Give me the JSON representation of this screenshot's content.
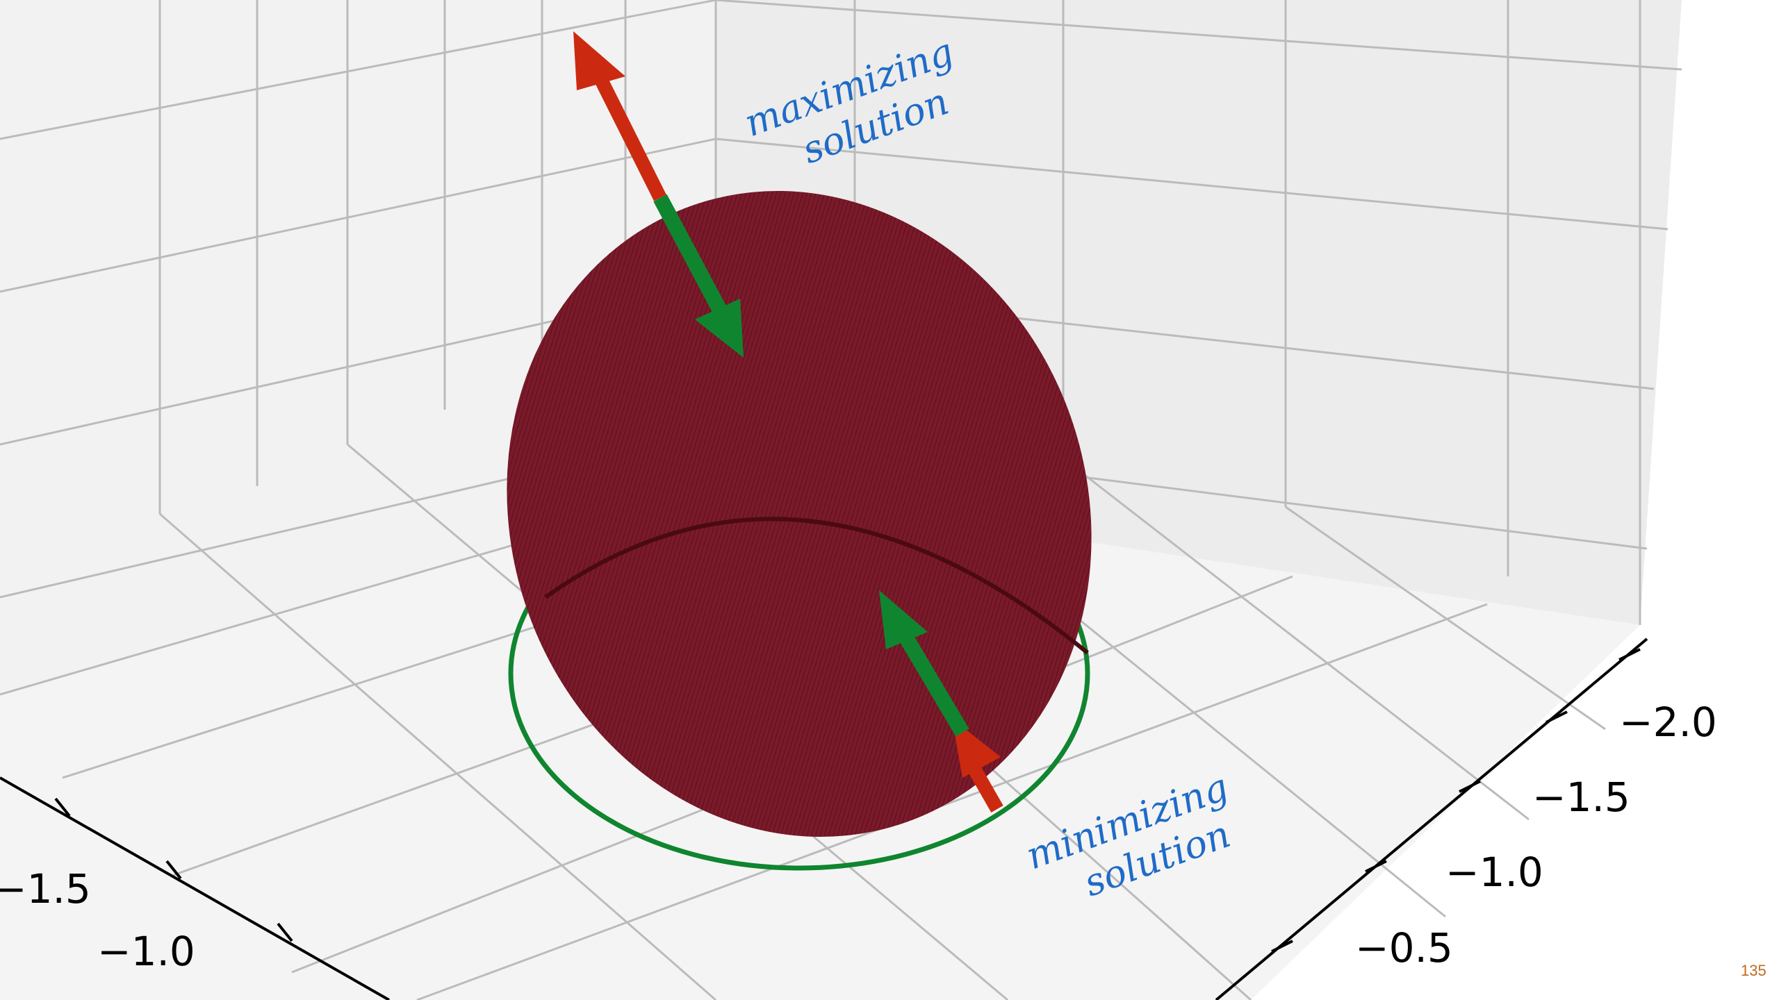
{
  "chart_data": {
    "type": "3d-surface",
    "x_axis": {
      "ticks": [
        "−2.0",
        "−1.5",
        "−1.0",
        "−0.5"
      ]
    },
    "y_axis": {
      "ticks": [
        "−1.5",
        "−1.0"
      ]
    },
    "annotations": {
      "max_line1": "maximizing",
      "max_line2": "solution",
      "min_line1": "minimizing",
      "min_line2": "solution"
    },
    "colors": {
      "ellipsoid": "#7a1a2a",
      "red_vector": "#cc2a10",
      "green_vector": "#10852f",
      "circle": "#10852f",
      "annotation": "#1f6bc7"
    }
  },
  "page_number": "135"
}
